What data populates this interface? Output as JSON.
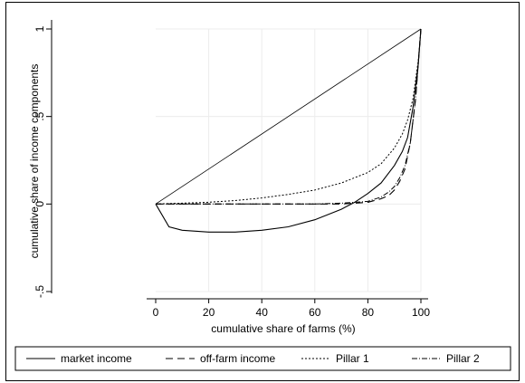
{
  "chart_data": {
    "type": "line",
    "title": "",
    "xlabel": "cumulative share of farms (%)",
    "ylabel": "cumulative share of income components",
    "xlim": [
      0,
      100
    ],
    "ylim": [
      -0.5,
      1
    ],
    "x_ticks": [
      0,
      20,
      40,
      60,
      80,
      100
    ],
    "x_tick_labels": [
      "0",
      "20",
      "40",
      "60",
      "80",
      "100"
    ],
    "y_ticks": [
      -0.5,
      0,
      0.5,
      1
    ],
    "y_tick_labels": [
      "-.5",
      "0",
      ".5",
      "1"
    ],
    "grid": true,
    "legend_position": "bottom",
    "equality_line": {
      "x": [
        0,
        100
      ],
      "y": [
        0,
        1
      ]
    },
    "series": [
      {
        "name": "market income",
        "style": "solid",
        "x": [
          0,
          5,
          10,
          20,
          30,
          40,
          50,
          60,
          70,
          75,
          80,
          85,
          90,
          93,
          95,
          97,
          99,
          100
        ],
        "y": [
          0,
          -0.13,
          -0.15,
          -0.16,
          -0.16,
          -0.15,
          -0.13,
          -0.09,
          -0.03,
          0.01,
          0.06,
          0.12,
          0.22,
          0.3,
          0.38,
          0.55,
          0.8,
          1
        ]
      },
      {
        "name": "off-farm income",
        "style": "dashed",
        "x": [
          0,
          10,
          20,
          30,
          40,
          50,
          60,
          70,
          75,
          80,
          85,
          88,
          90,
          92,
          94,
          96,
          98,
          100
        ],
        "y": [
          0,
          0,
          0,
          0,
          0,
          0,
          0,
          0,
          0.005,
          0.01,
          0.03,
          0.05,
          0.08,
          0.13,
          0.2,
          0.35,
          0.6,
          1
        ]
      },
      {
        "name": "Pillar 1",
        "style": "dotted",
        "x": [
          0,
          10,
          20,
          30,
          40,
          50,
          60,
          70,
          80,
          85,
          90,
          93,
          95,
          97,
          99,
          100
        ],
        "y": [
          0,
          0.005,
          0.01,
          0.02,
          0.035,
          0.055,
          0.08,
          0.12,
          0.18,
          0.23,
          0.32,
          0.4,
          0.48,
          0.6,
          0.82,
          1
        ]
      },
      {
        "name": "Pillar 2",
        "style": "dashdot",
        "x": [
          0,
          10,
          20,
          30,
          40,
          50,
          60,
          70,
          80,
          85,
          88,
          90,
          92,
          94,
          96,
          98,
          100
        ],
        "y": [
          0,
          0,
          0,
          0,
          0,
          0,
          0,
          0.005,
          0.015,
          0.04,
          0.07,
          0.1,
          0.15,
          0.22,
          0.35,
          0.6,
          1
        ]
      }
    ]
  }
}
